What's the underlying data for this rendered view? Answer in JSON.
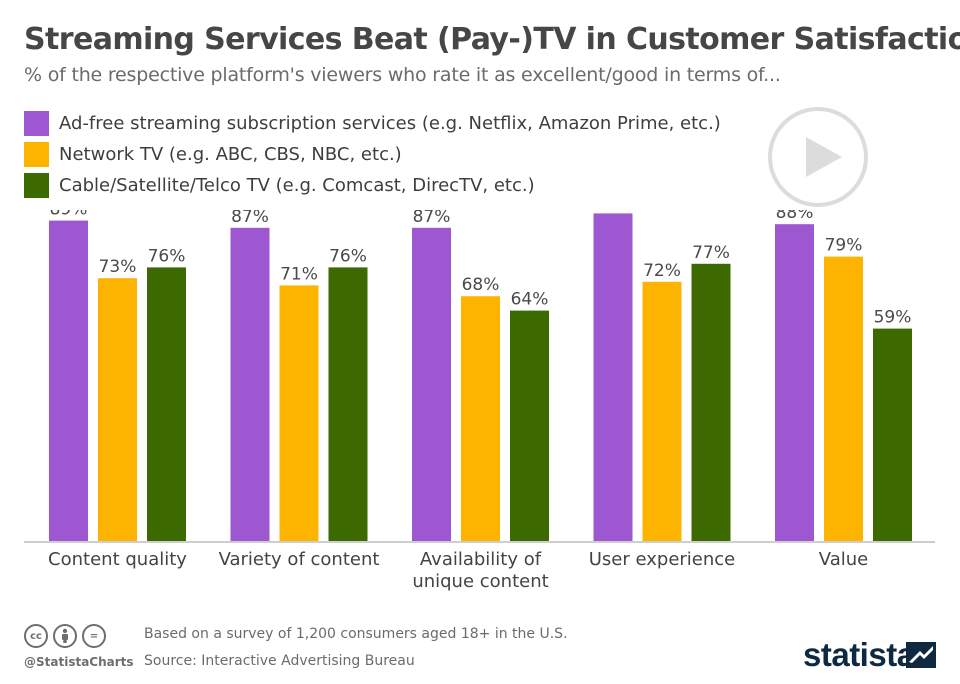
{
  "header": {
    "title": "Streaming Services Beat (Pay-)TV in Customer Satisfaction",
    "subtitle": "% of the respective platform's viewers who rate it as excellent/good in terms of..."
  },
  "legend": [
    {
      "label": "Ad-free streaming subscription services (e.g. Netflix, Amazon Prime, etc.)",
      "color": "#9d57d0"
    },
    {
      "label": "Network TV (e.g. ABC, CBS, NBC, etc.)",
      "color": "#fdb400"
    },
    {
      "label": "Cable/Satellite/Telco TV (e.g. Comcast, DirecTV, etc.)",
      "color": "#3c6a00"
    }
  ],
  "play_icon": "play-icon",
  "chart_data": {
    "type": "bar",
    "categories": [
      "Content quality",
      "Variety of content",
      "Availability of\nunique content",
      "User experience",
      "Value"
    ],
    "series": [
      {
        "name": "Ad-free streaming subscription services (e.g. Netflix, Amazon Prime, etc.)",
        "color": "#9d57d0",
        "values": [
          89,
          87,
          87,
          91,
          88
        ]
      },
      {
        "name": "Network TV (e.g. ABC, CBS, NBC, etc.)",
        "color": "#fdb400",
        "values": [
          73,
          71,
          68,
          72,
          79
        ]
      },
      {
        "name": "Cable/Satellite/Telco TV (e.g. Comcast, DirecTV, etc.)",
        "color": "#3c6a00",
        "values": [
          76,
          76,
          64,
          77,
          59
        ]
      }
    ],
    "value_suffix": "%",
    "ylim": [
      0,
      100
    ],
    "grid": false,
    "legend_position": "top-left"
  },
  "footer": {
    "handle": "@StatistaCharts",
    "note": "Based on a survey of 1,200 consumers aged 18+ in the U.S.",
    "source": "Source: Interactive Advertising Bureau",
    "brand": "statista",
    "license_icons": [
      {
        "icon": "cc-icon",
        "glyph": "cc"
      },
      {
        "icon": "attribution-icon",
        "glyph": ""
      },
      {
        "icon": "no-derivatives-icon",
        "glyph": "="
      }
    ]
  }
}
